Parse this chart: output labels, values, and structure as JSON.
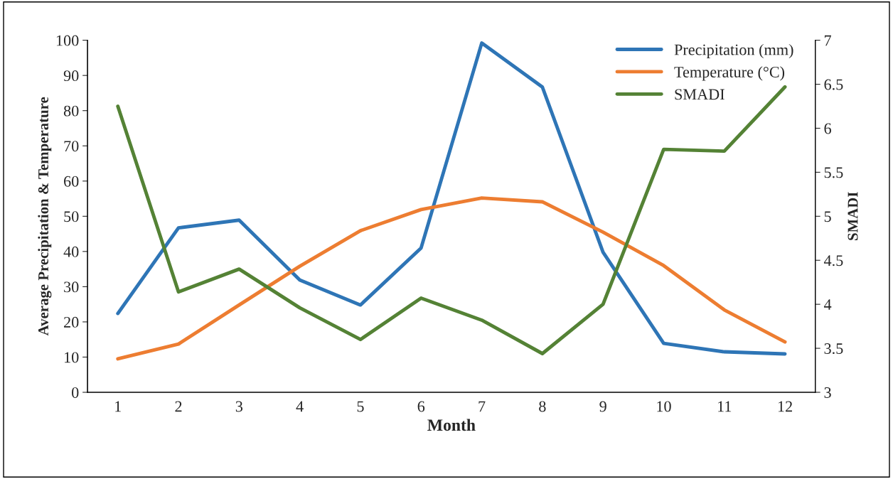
{
  "chart_data": {
    "type": "line",
    "xlabel": "Month",
    "ylabel": "Average Precipitation & Temperature",
    "y2label": "SMADI",
    "categories": [
      "1",
      "2",
      "3",
      "4",
      "5",
      "6",
      "7",
      "8",
      "9",
      "10",
      "11",
      "12"
    ],
    "series": [
      {
        "name": "Precipitation (mm)",
        "color": "#2e75b6",
        "values": [
          22.4,
          46.7,
          48.9,
          31.9,
          24.8,
          41.0,
          99.2,
          86.7,
          39.8,
          13.9,
          11.5,
          10.9
        ]
      },
      {
        "name": "Temperature (°C)",
        "color": "#ed7d31",
        "values": [
          9.5,
          13.7,
          24.8,
          35.8,
          45.9,
          51.9,
          55.2,
          54.1,
          45.5,
          36.0,
          23.4,
          14.3
        ]
      },
      {
        "name": "SMADI",
        "color": "#548235",
        "axis": "y2",
        "values": [
          6.25,
          4.14,
          4.4,
          3.96,
          3.6,
          4.07,
          3.82,
          3.44,
          4.0,
          5.76,
          5.74,
          6.47
        ]
      }
    ],
    "ylim": [
      0,
      100
    ],
    "yticks": [
      0,
      10,
      20,
      30,
      40,
      50,
      60,
      70,
      80,
      90,
      100
    ],
    "y2lim": [
      3,
      7
    ],
    "y2ticks": [
      3,
      3.5,
      4,
      4.5,
      5,
      5.5,
      6,
      6.5,
      7
    ],
    "grid": false,
    "legend": "top right",
    "marker": "none",
    "line_style": "solid"
  }
}
